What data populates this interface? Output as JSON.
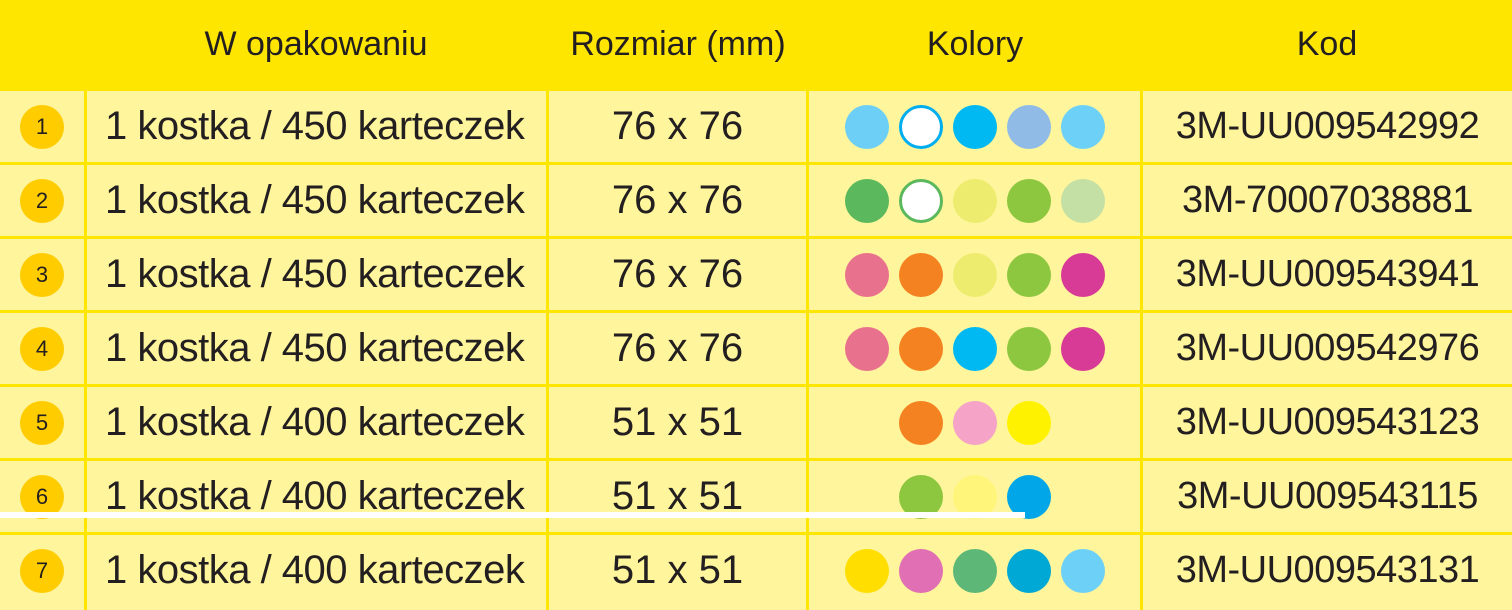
{
  "header": {
    "col_pack": "W opakowaniu",
    "col_size": "Rozmiar (mm)",
    "col_colors": "Kolory",
    "col_code": "Kod"
  },
  "rows": [
    {
      "num": "1",
      "pack": "1 kostka / 450 karteczek",
      "size": "76 x 76",
      "code": "3M-UU009542992",
      "colors": [
        {
          "name": "light-blue",
          "hex": "#6dcff6"
        },
        {
          "name": "white",
          "hex": "#ffffff",
          "ring": "#00aeef"
        },
        {
          "name": "cyan",
          "hex": "#00b9f2"
        },
        {
          "name": "periwinkle",
          "hex": "#8fbbe6"
        },
        {
          "name": "sky",
          "hex": "#6dd0f7"
        }
      ]
    },
    {
      "num": "2",
      "pack": "1 kostka / 450 karteczek",
      "size": "76 x 76",
      "code": "3M-70007038881",
      "colors": [
        {
          "name": "green",
          "hex": "#5cb85c"
        },
        {
          "name": "white",
          "hex": "#ffffff",
          "ring": "#5cb85c"
        },
        {
          "name": "pale-yellow",
          "hex": "#eeec6e"
        },
        {
          "name": "lime",
          "hex": "#8dc63f"
        },
        {
          "name": "pale-green",
          "hex": "#c5e0a5"
        }
      ]
    },
    {
      "num": "3",
      "pack": "1 kostka / 450 karteczek",
      "size": "76 x 76",
      "code": "3M-UU009543941",
      "colors": [
        {
          "name": "pink",
          "hex": "#e8718d"
        },
        {
          "name": "orange",
          "hex": "#f58220"
        },
        {
          "name": "pale-yellow",
          "hex": "#eeec6e"
        },
        {
          "name": "lime",
          "hex": "#8dc63f"
        },
        {
          "name": "magenta",
          "hex": "#d83b96"
        }
      ]
    },
    {
      "num": "4",
      "pack": "1 kostka / 450 karteczek",
      "size": "76 x 76",
      "code": "3M-UU009542976",
      "colors": [
        {
          "name": "pink",
          "hex": "#e8718d"
        },
        {
          "name": "orange",
          "hex": "#f58220"
        },
        {
          "name": "cyan",
          "hex": "#00b9f2"
        },
        {
          "name": "lime",
          "hex": "#8dc63f"
        },
        {
          "name": "magenta",
          "hex": "#d83b96"
        }
      ]
    },
    {
      "num": "5",
      "pack": "1 kostka / 400 karteczek",
      "size": "51 x 51",
      "code": "3M-UU009543123",
      "colors": [
        {
          "name": "orange",
          "hex": "#f58220"
        },
        {
          "name": "light-pink",
          "hex": "#f5a3c7"
        },
        {
          "name": "yellow",
          "hex": "#fff200"
        }
      ]
    },
    {
      "num": "6",
      "pack": "1 kostka / 400 karteczek",
      "size": "51 x 51",
      "code": "3M-UU009543115",
      "colors": [
        {
          "name": "lime",
          "hex": "#8dc63f"
        },
        {
          "name": "pale-yellow",
          "hex": "#fff57a"
        },
        {
          "name": "blue",
          "hex": "#00a6e8"
        }
      ]
    },
    {
      "num": "7",
      "pack": "1 kostka / 400 karteczek",
      "size": "51 x 51",
      "code": "3M-UU009543131",
      "colors": [
        {
          "name": "gold",
          "hex": "#ffde00"
        },
        {
          "name": "orchid",
          "hex": "#e06fb3"
        },
        {
          "name": "sea-green",
          "hex": "#5db878"
        },
        {
          "name": "teal",
          "hex": "#00a8d6"
        },
        {
          "name": "sky",
          "hex": "#6dd0f7"
        }
      ]
    }
  ]
}
